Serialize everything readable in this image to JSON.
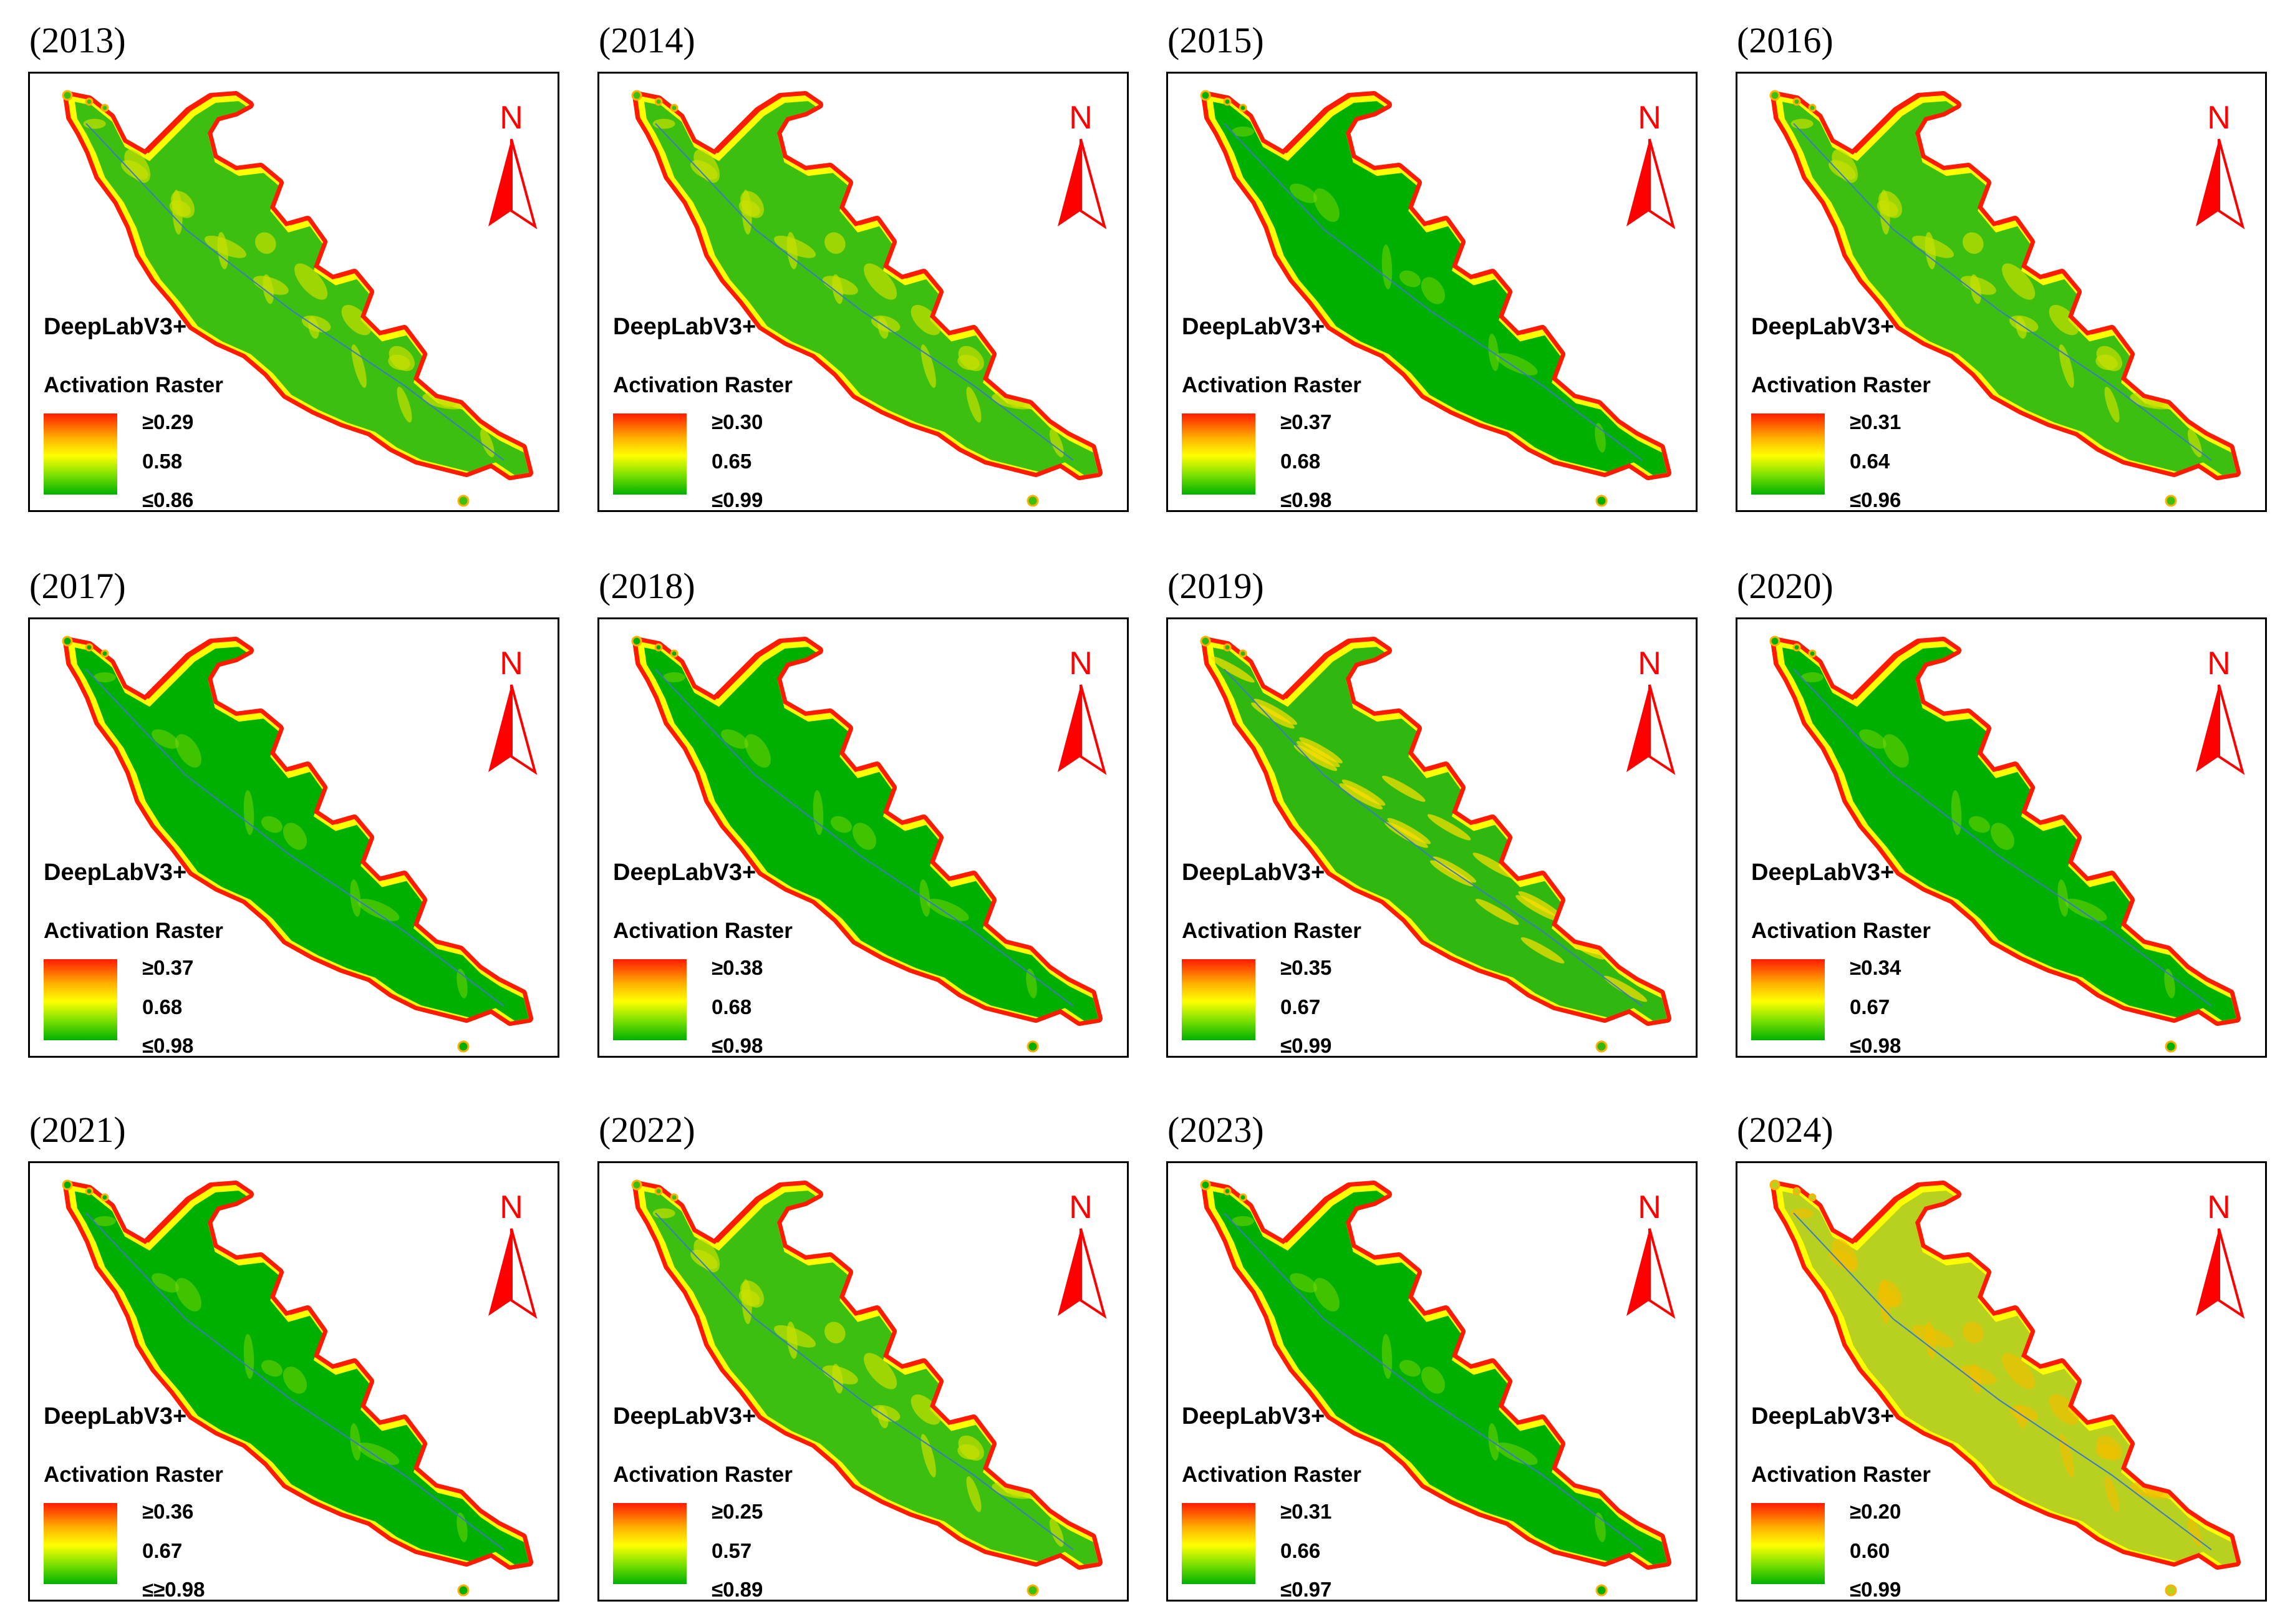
{
  "panels": [
    {
      "year": "(2013)",
      "model": "DeepLabV3+",
      "legend_title": "Activation Raster",
      "max": "≥0.29",
      "mid": "0.58",
      "min": "≤0.86",
      "north": "N",
      "style": "mixed"
    },
    {
      "year": "(2014)",
      "model": "DeepLabV3+",
      "legend_title": "Activation Raster",
      "max": "≥0.30",
      "mid": "0.65",
      "min": "≤0.99",
      "north": "N",
      "style": "mixed"
    },
    {
      "year": "(2015)",
      "model": "DeepLabV3+",
      "legend_title": "Activation Raster",
      "max": "≥0.37",
      "mid": "0.68",
      "min": "≤0.98",
      "north": "N",
      "style": "green"
    },
    {
      "year": "(2016)",
      "model": "DeepLabV3+",
      "legend_title": "Activation Raster",
      "max": "≥0.31",
      "mid": "0.64",
      "min": "≤0.96",
      "north": "N",
      "style": "mixed"
    },
    {
      "year": "(2017)",
      "model": "DeepLabV3+",
      "legend_title": "Activation Raster",
      "max": "≥0.37",
      "mid": "0.68",
      "min": "≤0.98",
      "north": "N",
      "style": "green"
    },
    {
      "year": "(2018)",
      "model": "DeepLabV3+",
      "legend_title": "Activation Raster",
      "max": "≥0.38",
      "mid": "0.68",
      "min": "≤0.98",
      "north": "N",
      "style": "green"
    },
    {
      "year": "(2019)",
      "model": "DeepLabV3+",
      "legend_title": "Activation Raster",
      "max": "≥0.35",
      "mid": "0.67",
      "min": "≤0.99",
      "north": "N",
      "style": "striped"
    },
    {
      "year": "(2020)",
      "model": "DeepLabV3+",
      "legend_title": "Activation Raster",
      "max": "≥0.34",
      "mid": "0.67",
      "min": "≤0.98",
      "north": "N",
      "style": "green"
    },
    {
      "year": "(2021)",
      "model": "DeepLabV3+",
      "legend_title": "Activation Raster",
      "max": "≥0.36",
      "mid": "0.67",
      "min": "≤≥0.98",
      "north": "N",
      "style": "green"
    },
    {
      "year": "(2022)",
      "model": "DeepLabV3+",
      "legend_title": "Activation Raster",
      "max": "≥0.25",
      "mid": "0.57",
      "min": "≤0.89",
      "north": "N",
      "style": "mixed"
    },
    {
      "year": "(2023)",
      "model": "DeepLabV3+",
      "legend_title": "Activation Raster",
      "max": "≥0.31",
      "mid": "0.66",
      "min": "≤0.97",
      "north": "N",
      "style": "green"
    },
    {
      "year": "(2024)",
      "model": "DeepLabV3+",
      "legend_title": "Activation Raster",
      "max": "≥0.20",
      "mid": "0.60",
      "min": "≤0.99",
      "north": "N",
      "style": "yellow"
    }
  ],
  "colors": {
    "high": "#ff1a00",
    "mid_high": "#ffb000",
    "middle": "#ffff00",
    "mid_low": "#70dd00",
    "low": "#00b000",
    "north_arrow": "#ff0000"
  }
}
